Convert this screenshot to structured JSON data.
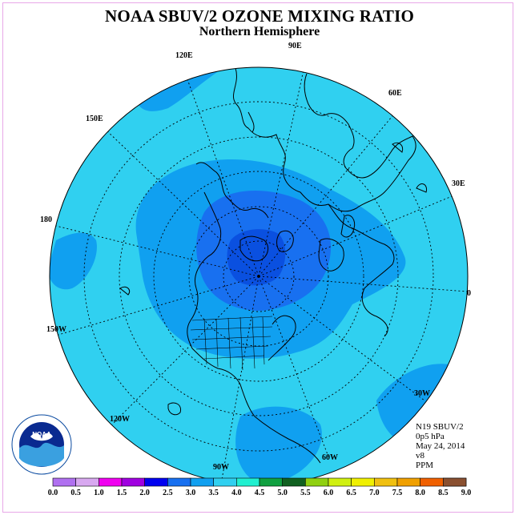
{
  "title": "NOAA SBUV/2 OZONE MIXING RATIO",
  "subtitle": "Northern Hemisphere",
  "longitude_labels": {
    "e90": "90E",
    "e120": "120E",
    "e60": "60E",
    "e150": "150E",
    "e30": "30E",
    "e180": "180",
    "e0": "0",
    "w150": "150W",
    "w30": "30W",
    "w120": "120W",
    "w60": "60W",
    "w90": "90W"
  },
  "info": {
    "instrument": "N19 SBUV/2",
    "pressure": "0p5 hPa",
    "date": "May 24, 2014",
    "version": "v8",
    "units": "PPM"
  },
  "logo_text": "NOAA",
  "colorbar": {
    "labels": [
      "0.0",
      "0.5",
      "1.0",
      "1.5",
      "2.0",
      "2.5",
      "3.0",
      "3.5",
      "4.0",
      "4.5",
      "5.0",
      "5.5",
      "6.0",
      "6.5",
      "7.0",
      "7.5",
      "8.0",
      "8.5",
      "9.0"
    ],
    "colors": [
      "#b070f0",
      "#d8a8f0",
      "#f000f0",
      "#a000e0",
      "#0000f0",
      "#1870f0",
      "#10a0f0",
      "#30d0f0",
      "#20f0d0",
      "#10a040",
      "#106020",
      "#90d010",
      "#d0f010",
      "#f0f000",
      "#f0c010",
      "#f0a000",
      "#f06000",
      "#f00000",
      "#8a5030"
    ]
  },
  "map_colors": {
    "c25": "#1870f0",
    "c30": "#10a0f0",
    "c35": "#30d0f0",
    "c20": "#0a50e0"
  }
}
